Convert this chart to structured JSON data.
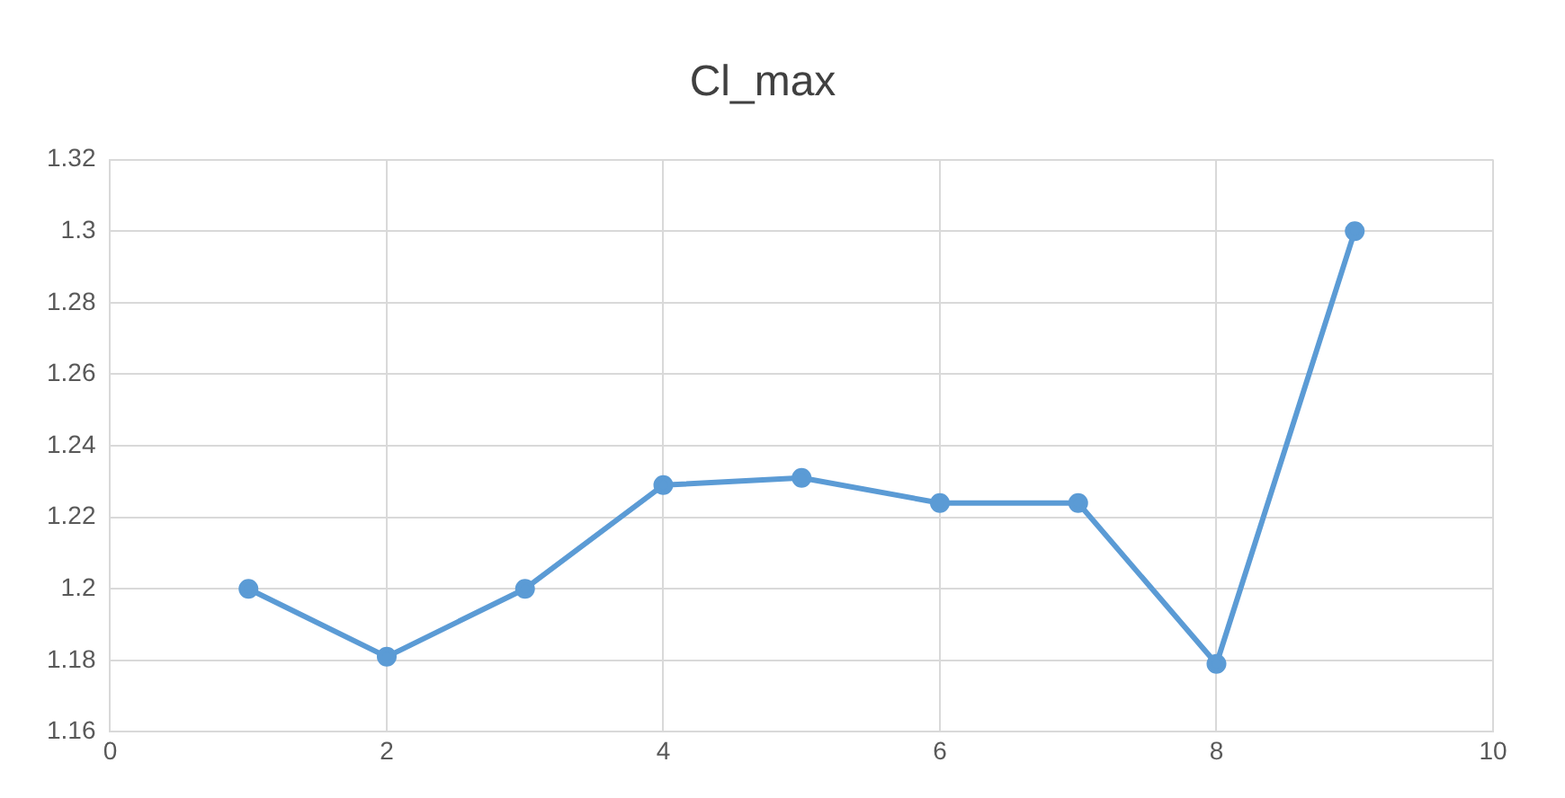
{
  "chart_data": {
    "type": "line",
    "title": "Cl_max",
    "x": [
      1,
      2,
      3,
      4,
      5,
      6,
      7,
      8,
      9
    ],
    "series": [
      {
        "color": "#5b9bd5",
        "values": [
          1.2,
          1.181,
          1.2,
          1.229,
          1.231,
          1.224,
          1.224,
          1.179,
          1.3
        ]
      }
    ],
    "xlim": [
      0,
      10
    ],
    "xticks": [
      0,
      2,
      4,
      6,
      8,
      10
    ],
    "ylim": [
      1.16,
      1.32
    ],
    "yticks": [
      1.16,
      1.18,
      1.2,
      1.22,
      1.24,
      1.26,
      1.28,
      1.3,
      1.32
    ],
    "grid": true,
    "legend": false,
    "marker": "circle",
    "line_style": "solid"
  }
}
